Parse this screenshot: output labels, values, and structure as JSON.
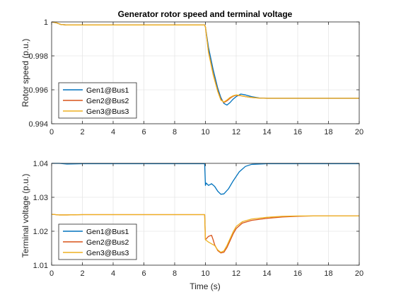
{
  "chart_data": [
    {
      "type": "line",
      "title": "Generator rotor speed and terminal voltage",
      "xlabel": "",
      "ylabel": "Rotor speed (p.u.)",
      "xlim": [
        0,
        20
      ],
      "ylim": [
        0.994,
        1.0
      ],
      "xticks": [
        "0",
        "2",
        "4",
        "6",
        "8",
        "10",
        "12",
        "14",
        "16",
        "18",
        "20"
      ],
      "yticks": [
        "0.994",
        "0.996",
        "0.998",
        "1"
      ],
      "grid": true,
      "legend_position": "bottom-left",
      "series": [
        {
          "name": "Gen1@Bus1",
          "color": "#0072BD",
          "x": [
            0,
            0.3,
            0.6,
            1.0,
            2.0,
            9.95,
            10.0,
            10.2,
            10.5,
            10.8,
            11.0,
            11.2,
            11.4,
            11.6,
            11.8,
            12.0,
            12.3,
            12.6,
            13.0,
            13.5,
            14.0,
            16.0,
            20.0
          ],
          "y": [
            1.0,
            0.99995,
            0.99985,
            0.99982,
            0.99982,
            0.99982,
            0.9997,
            0.9985,
            0.9972,
            0.9961,
            0.99555,
            0.9952,
            0.9951,
            0.99525,
            0.99545,
            0.9956,
            0.99575,
            0.9957,
            0.9956,
            0.99552,
            0.9955,
            0.9955,
            0.9955
          ]
        },
        {
          "name": "Gen2@Bus2",
          "color": "#D95319",
          "x": [
            0,
            0.3,
            0.6,
            1.0,
            2.0,
            9.95,
            10.0,
            10.2,
            10.5,
            10.8,
            11.0,
            11.2,
            11.4,
            11.6,
            11.8,
            12.0,
            12.3,
            12.6,
            13.0,
            13.5,
            14.0,
            16.0,
            20.0
          ],
          "y": [
            1.0,
            0.99995,
            0.99985,
            0.99982,
            0.99982,
            0.99982,
            0.9997,
            0.99825,
            0.99695,
            0.99595,
            0.99545,
            0.99525,
            0.99535,
            0.9955,
            0.99562,
            0.99568,
            0.99565,
            0.9956,
            0.99555,
            0.99551,
            0.9955,
            0.9955,
            0.9955
          ]
        },
        {
          "name": "Gen3@Bus3",
          "color": "#EDB120",
          "x": [
            0,
            0.3,
            0.6,
            1.0,
            2.0,
            9.95,
            10.0,
            10.2,
            10.5,
            10.8,
            11.0,
            11.2,
            11.4,
            11.6,
            11.8,
            12.0,
            12.3,
            12.6,
            13.0,
            13.5,
            14.0,
            16.0,
            20.0
          ],
          "y": [
            1.0,
            0.99995,
            0.99985,
            0.99982,
            0.99982,
            0.99982,
            0.9997,
            0.9982,
            0.9969,
            0.9959,
            0.9954,
            0.99528,
            0.9954,
            0.99555,
            0.99565,
            0.9957,
            0.99566,
            0.9956,
            0.99555,
            0.99551,
            0.9955,
            0.9955,
            0.9955
          ]
        }
      ]
    },
    {
      "type": "line",
      "title": "",
      "xlabel": "Time (s)",
      "ylabel": "Terminal voltage (p.u.)",
      "xlim": [
        0,
        20
      ],
      "ylim": [
        1.01,
        1.04
      ],
      "xticks": [
        "0",
        "2",
        "4",
        "6",
        "8",
        "10",
        "12",
        "14",
        "16",
        "18",
        "20"
      ],
      "yticks": [
        "1.01",
        "1.02",
        "1.03",
        "1.04"
      ],
      "grid": true,
      "legend_position": "bottom-left",
      "series": [
        {
          "name": "Gen1@Bus1",
          "color": "#0072BD",
          "x": [
            0,
            0.5,
            1.0,
            2.0,
            9.95,
            10.0,
            10.05,
            10.2,
            10.4,
            10.6,
            10.8,
            11.0,
            11.2,
            11.5,
            11.8,
            12.2,
            12.6,
            13.0,
            13.5,
            14.0,
            20.0
          ],
          "y": [
            1.04,
            1.04,
            1.0398,
            1.0399,
            1.0399,
            1.0335,
            1.0342,
            1.0335,
            1.034,
            1.0332,
            1.0318,
            1.0309,
            1.031,
            1.0325,
            1.0348,
            1.0375,
            1.0391,
            1.0397,
            1.0398,
            1.0399,
            1.0399
          ]
        },
        {
          "name": "Gen2@Bus2",
          "color": "#D95319",
          "x": [
            0,
            0.5,
            1.0,
            2.0,
            9.95,
            10.0,
            10.2,
            10.4,
            10.5,
            10.6,
            10.8,
            11.0,
            11.2,
            11.4,
            11.6,
            11.8,
            12.0,
            12.4,
            13.0,
            14.0,
            15.0,
            16.0,
            17.0,
            20.0
          ],
          "y": [
            1.025,
            1.0248,
            1.0248,
            1.0249,
            1.0249,
            1.0175,
            1.0185,
            1.0188,
            1.0175,
            1.016,
            1.0143,
            1.0136,
            1.0138,
            1.0152,
            1.0172,
            1.0192,
            1.0208,
            1.0224,
            1.0232,
            1.0238,
            1.0242,
            1.0244,
            1.0245,
            1.0245
          ]
        },
        {
          "name": "Gen3@Bus3",
          "color": "#EDB120",
          "x": [
            0,
            0.5,
            1.0,
            2.0,
            9.95,
            10.0,
            10.2,
            10.4,
            10.6,
            10.8,
            11.0,
            11.2,
            11.4,
            11.6,
            11.8,
            12.0,
            12.4,
            13.0,
            14.0,
            15.0,
            16.0,
            17.0,
            20.0
          ],
          "y": [
            1.025,
            1.0248,
            1.0248,
            1.0249,
            1.0249,
            1.0175,
            1.0168,
            1.0163,
            1.0158,
            1.0145,
            1.0138,
            1.0142,
            1.0158,
            1.0178,
            1.0198,
            1.0214,
            1.0228,
            1.0236,
            1.0241,
            1.0244,
            1.0245,
            1.0245,
            1.0245
          ]
        }
      ]
    }
  ]
}
